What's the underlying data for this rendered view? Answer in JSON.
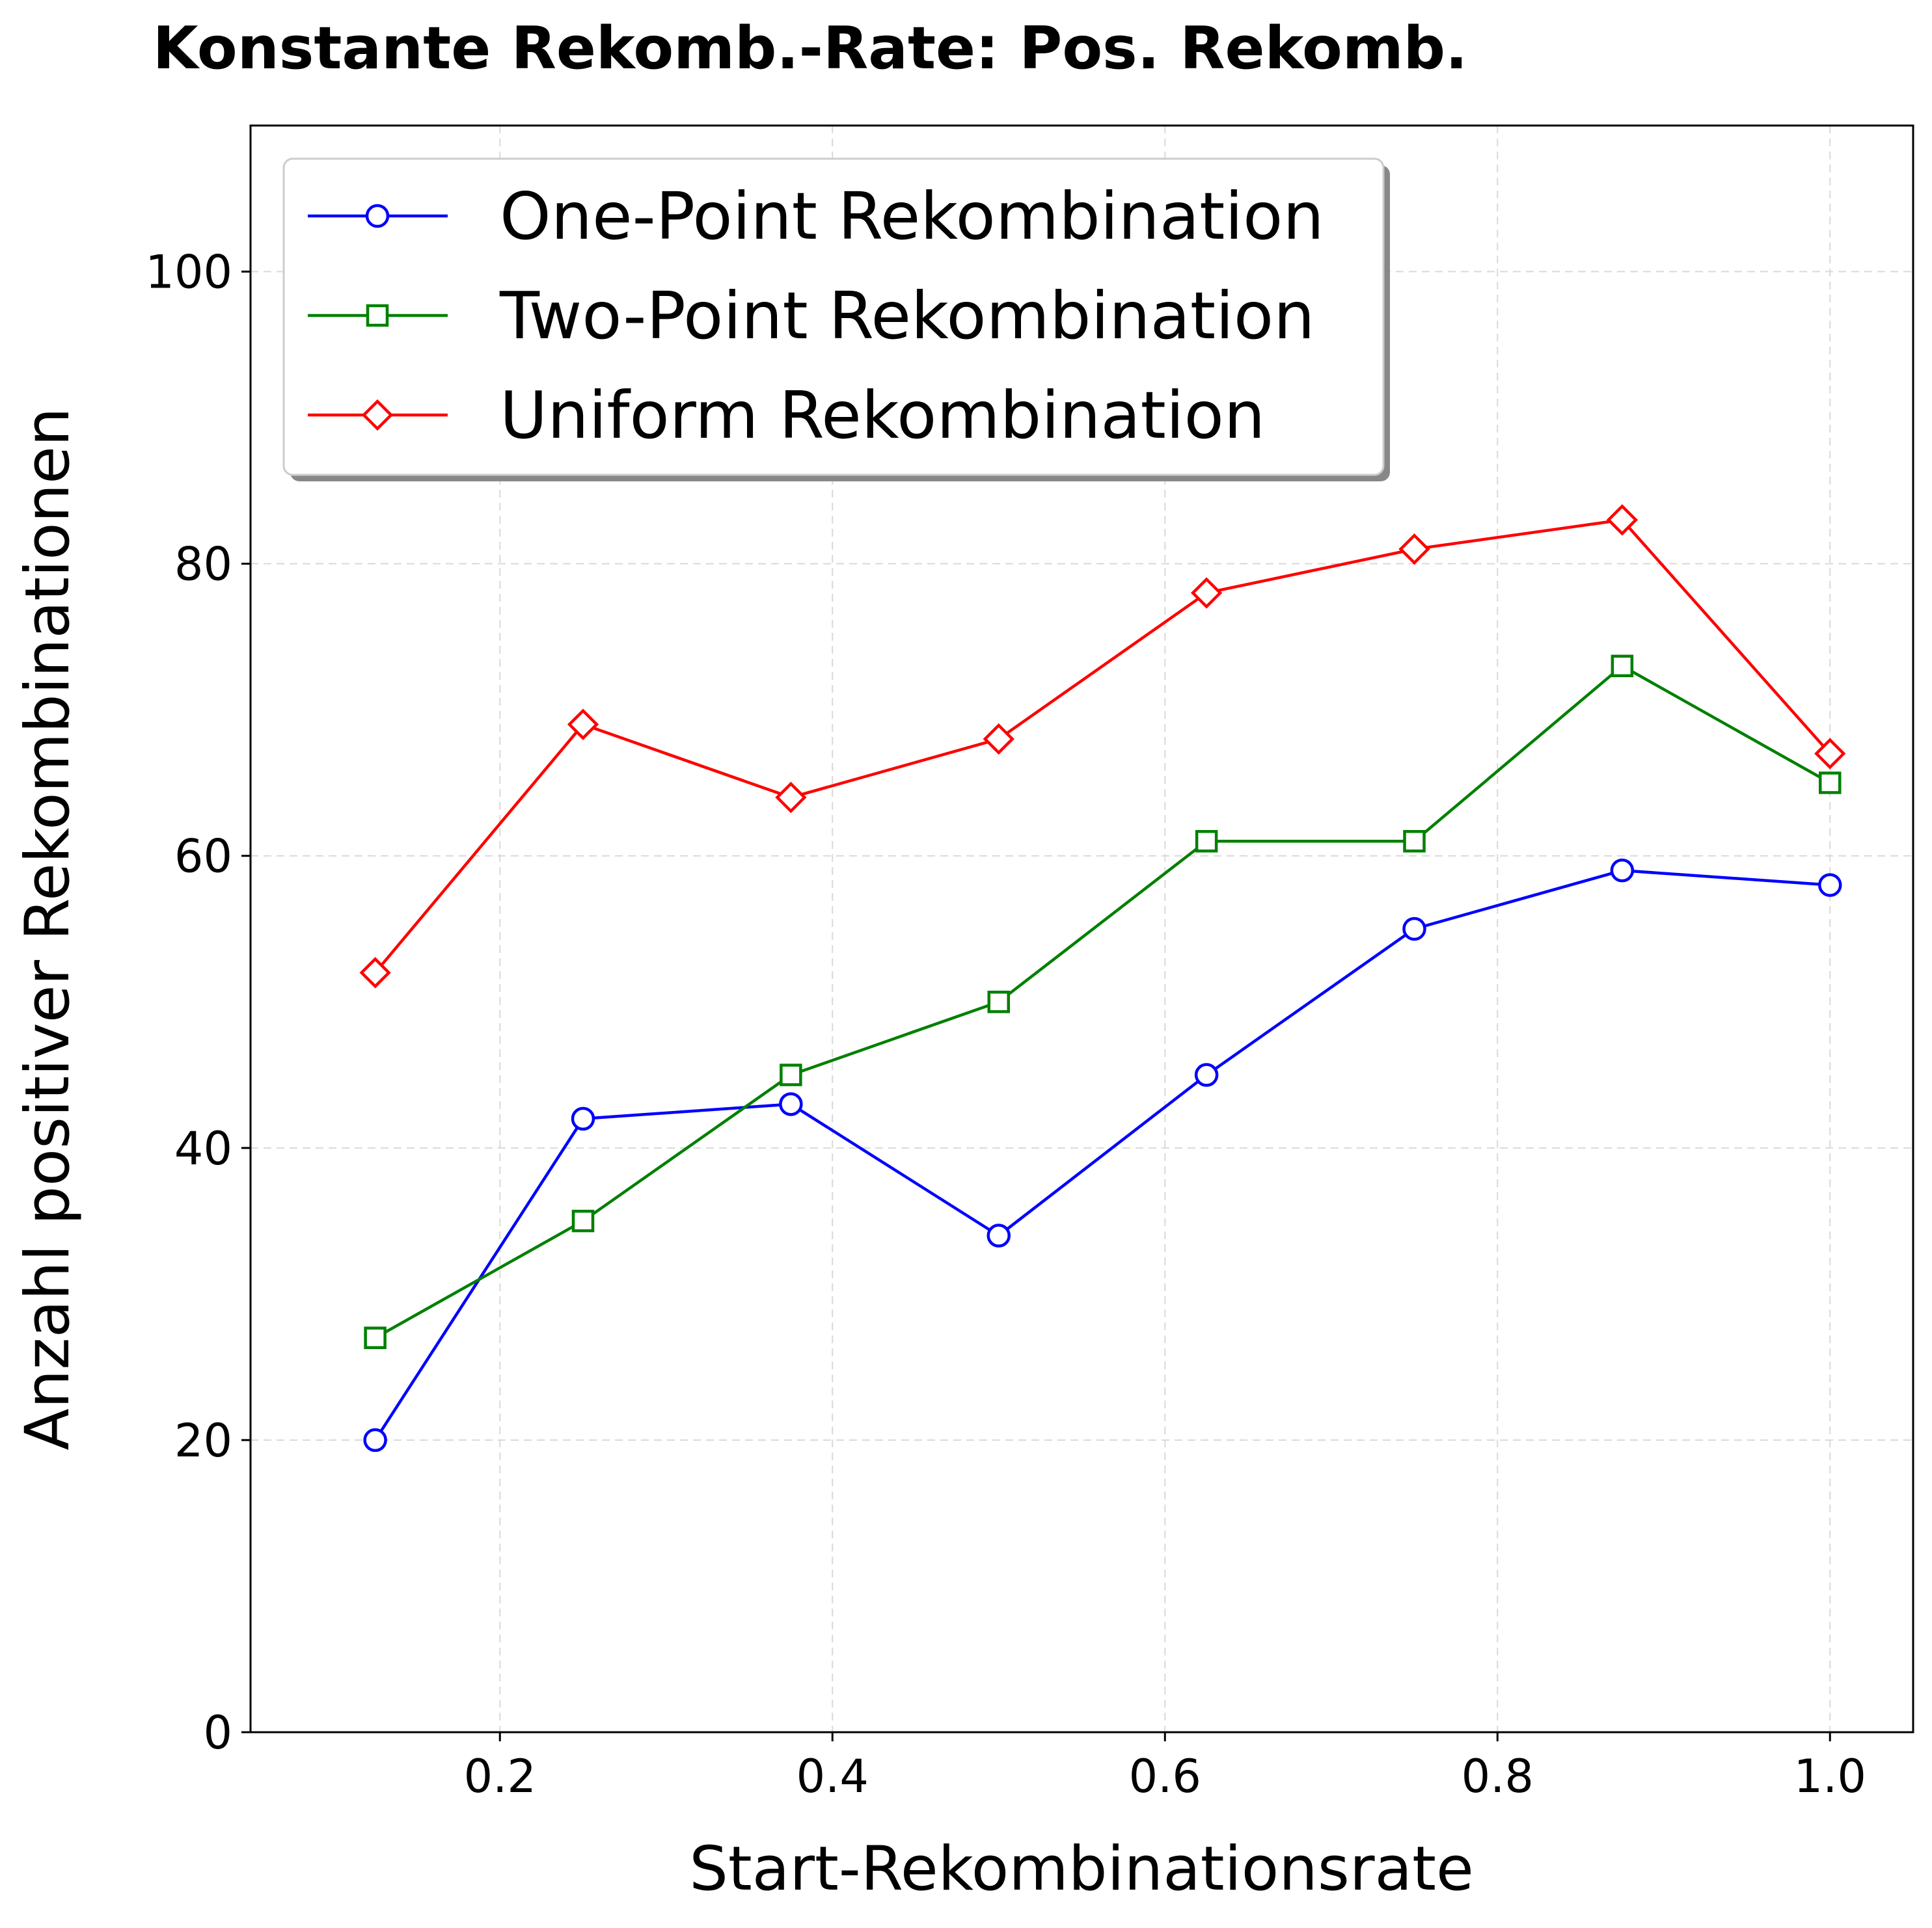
{
  "chart_data": {
    "type": "line",
    "title": "Konstante Rekomb.-Rate: Pos. Rekomb.",
    "xlabel": "Start-Rekombinationsrate",
    "ylabel": "Anzahl positiver Rekombinationen",
    "xlim": [
      0.05,
      1.05
    ],
    "ylim": [
      0,
      110
    ],
    "xticks": [
      0.2,
      0.4,
      0.6,
      0.8,
      1.0
    ],
    "xtick_labels": [
      "0.2",
      "0.4",
      "0.6",
      "0.8",
      "1.0"
    ],
    "yticks": [
      0,
      20,
      40,
      60,
      80,
      100
    ],
    "ytick_labels": [
      "0",
      "20",
      "40",
      "60",
      "80",
      "100"
    ],
    "grid": true,
    "legend_position": "top-left",
    "x": [
      0.125,
      0.25,
      0.375,
      0.5,
      0.625,
      0.75,
      0.875,
      1.0
    ],
    "series": [
      {
        "name": "One-Point Rekombination",
        "color": "#0000ff",
        "marker": "circle",
        "values": [
          20,
          42,
          43,
          34,
          45,
          55,
          59,
          58
        ]
      },
      {
        "name": "Two-Point Rekombination",
        "color": "#008000",
        "marker": "square",
        "values": [
          27,
          35,
          45,
          50,
          61,
          61,
          73,
          65
        ]
      },
      {
        "name": "Uniform Rekombination",
        "color": "#ff0000",
        "marker": "diamond",
        "values": [
          52,
          69,
          64,
          68,
          78,
          81,
          83,
          67
        ]
      }
    ]
  }
}
